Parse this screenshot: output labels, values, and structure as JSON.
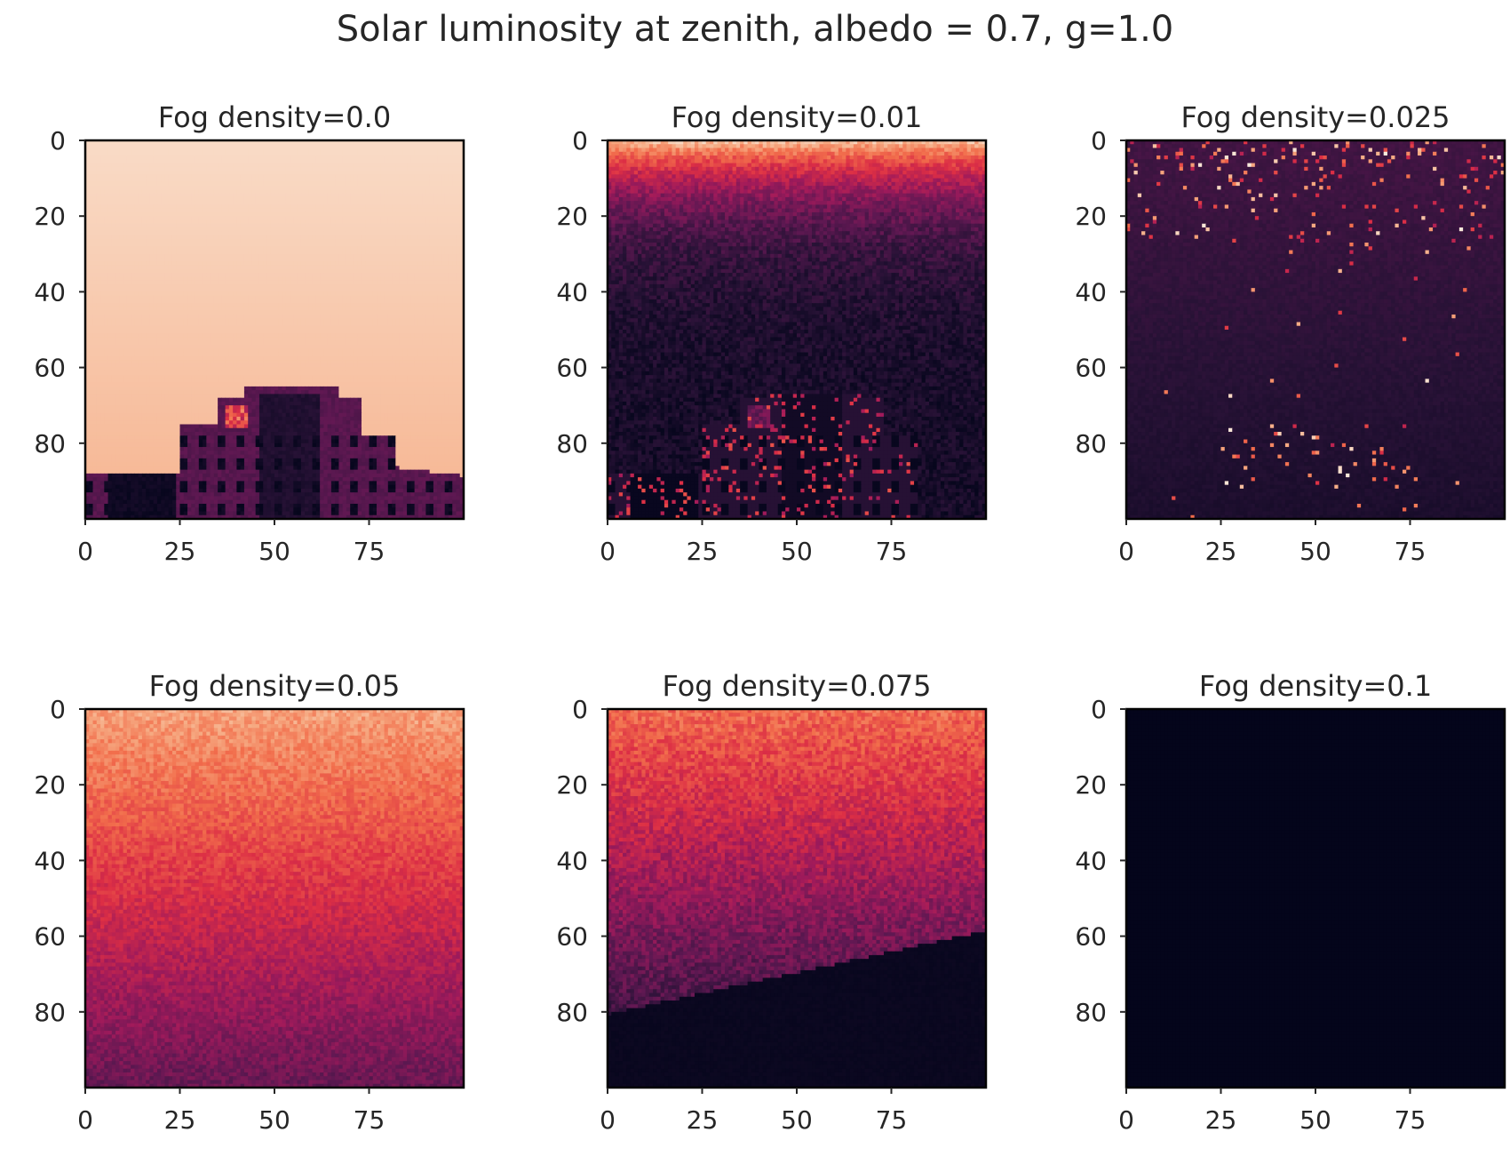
{
  "figure": {
    "suptitle": "Solar luminosity at zenith, albedo = 0.7, g=1.0"
  },
  "chart_data": [
    {
      "type": "heatmap",
      "title": "Fog density=0.0",
      "xticks": [
        0,
        25,
        50,
        75
      ],
      "yticks": [
        0,
        20,
        40,
        60,
        80
      ],
      "xlim": [
        0,
        100
      ],
      "ylim": [
        100,
        0
      ],
      "colormap": "rocket",
      "scene": "clear"
    },
    {
      "type": "heatmap",
      "title": "Fog density=0.01",
      "xticks": [
        0,
        25,
        50,
        75
      ],
      "yticks": [
        0,
        20,
        40,
        60,
        80
      ],
      "xlim": [
        0,
        100
      ],
      "ylim": [
        100,
        0
      ],
      "colormap": "rocket",
      "scene": "light-fog"
    },
    {
      "type": "heatmap",
      "title": "Fog density=0.025",
      "xticks": [
        0,
        25,
        50,
        75
      ],
      "yticks": [
        0,
        20,
        40,
        60,
        80
      ],
      "xlim": [
        0,
        100
      ],
      "ylim": [
        100,
        0
      ],
      "colormap": "rocket",
      "scene": "sparse-fog"
    },
    {
      "type": "heatmap",
      "title": "Fog density=0.05",
      "xticks": [
        0,
        25,
        50,
        75
      ],
      "yticks": [
        0,
        20,
        40,
        60,
        80
      ],
      "xlim": [
        0,
        100
      ],
      "ylim": [
        100,
        0
      ],
      "colormap": "rocket",
      "scene": "bright-fog"
    },
    {
      "type": "heatmap",
      "title": "Fog density=0.075",
      "xticks": [
        0,
        25,
        50,
        75
      ],
      "yticks": [
        0,
        20,
        40,
        60,
        80
      ],
      "xlim": [
        0,
        100
      ],
      "ylim": [
        100,
        0
      ],
      "colormap": "rocket",
      "scene": "dense-fog"
    },
    {
      "type": "heatmap",
      "title": "Fog density=0.1",
      "xticks": [
        0,
        25,
        50,
        75
      ],
      "yticks": [
        0,
        20,
        40,
        60,
        80
      ],
      "xlim": [
        0,
        100
      ],
      "ylim": [
        100,
        0
      ],
      "colormap": "rocket",
      "scene": "dark"
    }
  ]
}
